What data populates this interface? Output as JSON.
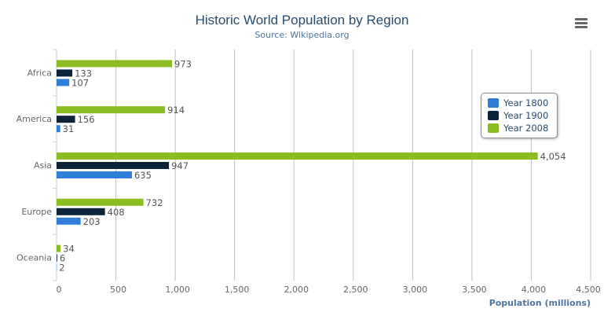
{
  "chart_data": {
    "type": "bar",
    "orientation": "horizontal",
    "title": "Historic World Population by Region",
    "subtitle": "Source: Wikipedia.org",
    "xlabel": "",
    "ylabel": "Population (millions)",
    "categories": [
      "Africa",
      "America",
      "Asia",
      "Europe",
      "Oceania"
    ],
    "ylim": [
      0,
      4500
    ],
    "ticks": [
      "0",
      "500",
      "1,000",
      "1,500",
      "2,000",
      "2,500",
      "3,000",
      "3,500",
      "4,000",
      "4,500"
    ],
    "grid": true,
    "legend_position": "right",
    "series": [
      {
        "name": "Year 1800",
        "color": "#2f7ed8",
        "values": [
          107,
          31,
          635,
          203,
          2
        ]
      },
      {
        "name": "Year 1900",
        "color": "#0d233a",
        "values": [
          133,
          156,
          947,
          408,
          6
        ]
      },
      {
        "name": "Year 2008",
        "color": "#8bbc21",
        "values": [
          973,
          914,
          4054,
          732,
          34
        ]
      }
    ]
  },
  "menu_icon": "hamburger-menu-icon"
}
